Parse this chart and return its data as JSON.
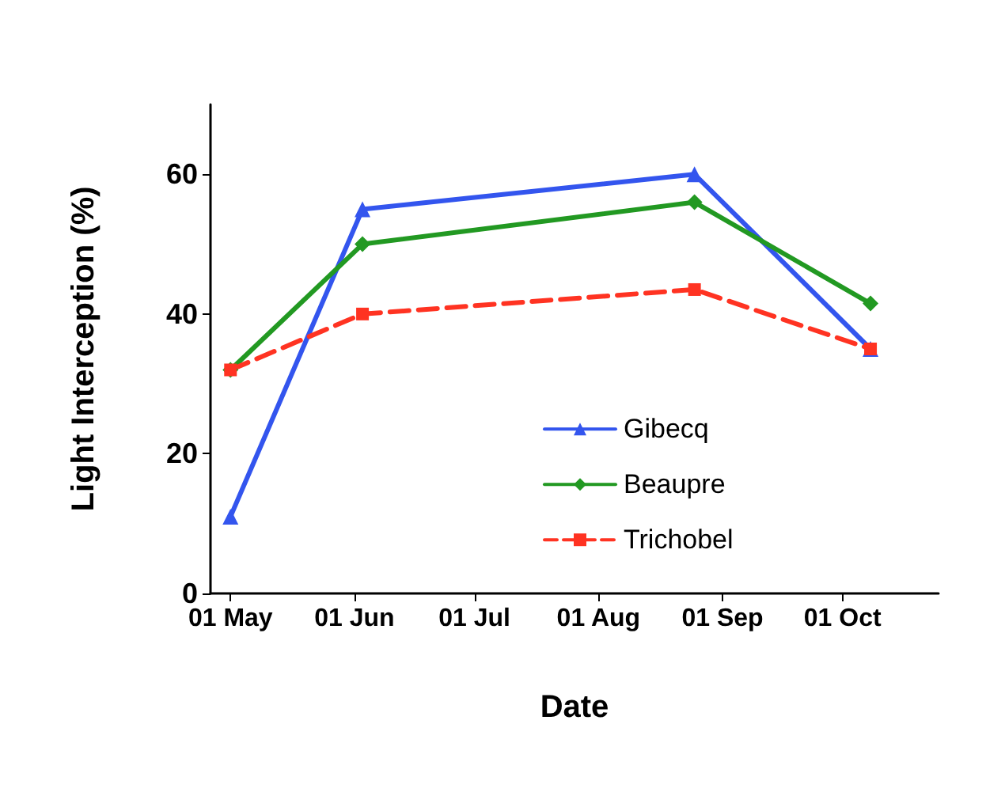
{
  "chart_data": {
    "type": "line",
    "xlabel": "Date",
    "ylabel": "Light Interception (%)",
    "x": [
      "--05-01",
      "--06-03",
      "--08-25",
      "--10-08"
    ],
    "xlim": [
      "--04-26",
      "--10-25"
    ],
    "xticks": [
      {
        "value": "--05-01",
        "label": "01 May"
      },
      {
        "value": "--06-01",
        "label": "01 Jun"
      },
      {
        "value": "--07-01",
        "label": "01 Jul"
      },
      {
        "value": "--08-01",
        "label": "01 Aug"
      },
      {
        "value": "--09-01",
        "label": "01 Sep"
      },
      {
        "value": "--10-01",
        "label": "01 Oct"
      }
    ],
    "ylim": [
      0,
      70
    ],
    "yticks": [
      0,
      20,
      40,
      60
    ],
    "grid": false,
    "legend": "right",
    "series": [
      {
        "name": "Gibecq",
        "color": "#3355ee",
        "marker": "triangle",
        "line_style": "solid",
        "values": [
          11,
          55,
          60,
          35
        ]
      },
      {
        "name": "Beaupre",
        "color": "#229922",
        "marker": "diamond",
        "line_style": "solid",
        "values": [
          32,
          50,
          56,
          41.5
        ]
      },
      {
        "name": "Trichobel",
        "color": "#ff3322",
        "marker": "square",
        "line_style": "dashed",
        "values": [
          32,
          40,
          43.5,
          35
        ]
      }
    ]
  }
}
